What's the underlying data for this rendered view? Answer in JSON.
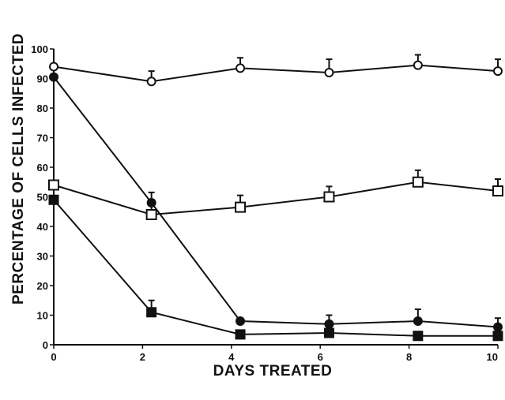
{
  "chart_data": {
    "type": "line",
    "xlabel": "DAYS TREATED",
    "ylabel": "PERCENTAGE OF CELLS INFECTED",
    "xlim": [
      0,
      10
    ],
    "ylim": [
      0,
      100
    ],
    "x_ticks": [
      0,
      2,
      4,
      6,
      8,
      10
    ],
    "y_ticks": [
      0,
      10,
      20,
      30,
      40,
      50,
      60,
      70,
      80,
      90,
      100
    ],
    "grid": false,
    "series": [
      {
        "marker": "open-circle",
        "points": [
          [
            0,
            94
          ],
          [
            2.2,
            89
          ],
          [
            4.2,
            93.5
          ],
          [
            6.2,
            92
          ],
          [
            8.2,
            94.5
          ],
          [
            10,
            92.5
          ]
        ],
        "errors": [
          0,
          3.5,
          3.5,
          4.5,
          3.5,
          4
        ]
      },
      {
        "marker": "filled-circle",
        "points": [
          [
            0,
            90.5
          ],
          [
            2.2,
            48
          ],
          [
            4.2,
            8
          ],
          [
            6.2,
            7
          ],
          [
            8.2,
            8
          ],
          [
            10,
            6
          ]
        ],
        "errors": [
          0,
          3.5,
          0,
          3,
          4,
          3
        ]
      },
      {
        "marker": "open-square",
        "points": [
          [
            0,
            54
          ],
          [
            2.2,
            44
          ],
          [
            4.2,
            46.5
          ],
          [
            6.2,
            50
          ],
          [
            8.2,
            55
          ],
          [
            10,
            52
          ]
        ],
        "errors": [
          0,
          5,
          4,
          3.5,
          4,
          4
        ]
      },
      {
        "marker": "filled-square",
        "points": [
          [
            0,
            49
          ],
          [
            2.2,
            11
          ],
          [
            4.2,
            3.5
          ],
          [
            6.2,
            4
          ],
          [
            8.2,
            3
          ],
          [
            10,
            3
          ]
        ],
        "errors": [
          0,
          4,
          0,
          0,
          0,
          0
        ]
      }
    ]
  }
}
